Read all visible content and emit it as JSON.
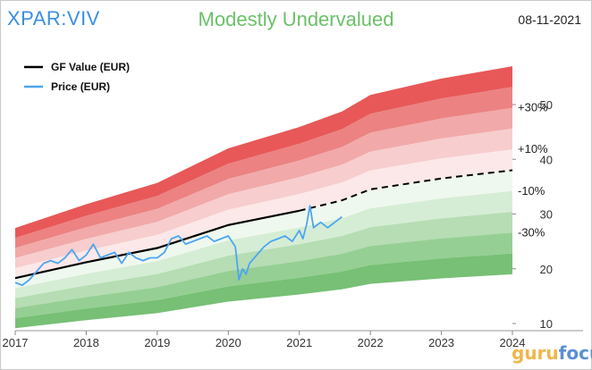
{
  "header": {
    "ticker": "XPAR:VIV",
    "valuation": "Modestly Undervalued",
    "date": "08-11-2021"
  },
  "brand": {
    "name": "gurufocus",
    "part1": "guru",
    "part2": "focus"
  },
  "chart_data": {
    "type": "line",
    "x_axis": {
      "ticks": [
        "2017",
        "2018",
        "2019",
        "2020",
        "2021",
        "2022",
        "2023",
        "2024"
      ],
      "range": [
        2017,
        2024
      ]
    },
    "y_axis": {
      "ticks": [
        10,
        20,
        30,
        40,
        50
      ],
      "range": [
        9,
        57
      ],
      "position": "right"
    },
    "legend": {
      "placement": "top-left"
    },
    "band_labels": [
      {
        "label": "+30%",
        "multiplier": 1.3
      },
      {
        "label": "+10%",
        "multiplier": 1.1
      },
      {
        "label": "-10%",
        "multiplier": 0.9
      },
      {
        "label": "-30%",
        "multiplier": 0.7
      }
    ],
    "band_multipliers": [
      1.5,
      1.4,
      1.3,
      1.2,
      1.1,
      1.0,
      0.9,
      0.8,
      0.7,
      0.6,
      0.5
    ],
    "band_colors": [
      "#e85858",
      "#ec8282",
      "#f2a9a9",
      "#f7cdcd",
      "#fce8e8",
      "#eff8ee",
      "#d6edd5",
      "#b6ddb4",
      "#96cf94",
      "#77c075"
    ],
    "series": [
      {
        "name": "GF Value (EUR)",
        "color": "#000000",
        "x": [
          2017.0,
          2018.0,
          2019.0,
          2020.0,
          2021.0,
          2021.6,
          2022.0,
          2023.0,
          2024.0
        ],
        "values": [
          18.3,
          21.2,
          23.8,
          28.0,
          30.6,
          32.5,
          34.5,
          36.5,
          38.0
        ],
        "projected_from": 2021.0
      },
      {
        "name": "Price (EUR)",
        "color": "#4da6f0",
        "x": [
          2017.0,
          2017.1,
          2017.2,
          2017.3,
          2017.4,
          2017.5,
          2017.6,
          2017.7,
          2017.8,
          2017.9,
          2018.0,
          2018.1,
          2018.2,
          2018.3,
          2018.4,
          2018.5,
          2018.6,
          2018.7,
          2018.8,
          2018.9,
          2019.0,
          2019.1,
          2019.2,
          2019.3,
          2019.4,
          2019.5,
          2019.6,
          2019.7,
          2019.8,
          2019.9,
          2020.0,
          2020.05,
          2020.1,
          2020.15,
          2020.2,
          2020.25,
          2020.3,
          2020.4,
          2020.5,
          2020.6,
          2020.7,
          2020.8,
          2020.9,
          2021.0,
          2021.05,
          2021.1,
          2021.15,
          2021.2,
          2021.3,
          2021.4,
          2021.5,
          2021.6
        ],
        "values": [
          17.5,
          17.0,
          18.0,
          19.5,
          21.0,
          21.5,
          21.0,
          22.0,
          23.5,
          21.5,
          22.5,
          24.5,
          22.0,
          22.5,
          23.0,
          21.0,
          23.0,
          22.0,
          21.5,
          22.0,
          22.0,
          23.0,
          25.5,
          26.0,
          24.5,
          25.0,
          25.5,
          26.0,
          25.0,
          25.5,
          26.0,
          25.0,
          24.0,
          18.0,
          20.0,
          19.0,
          21.0,
          22.5,
          24.0,
          25.0,
          25.5,
          26.0,
          25.0,
          27.0,
          25.5,
          28.0,
          31.5,
          27.5,
          28.5,
          27.5,
          28.5,
          29.5
        ]
      }
    ]
  }
}
